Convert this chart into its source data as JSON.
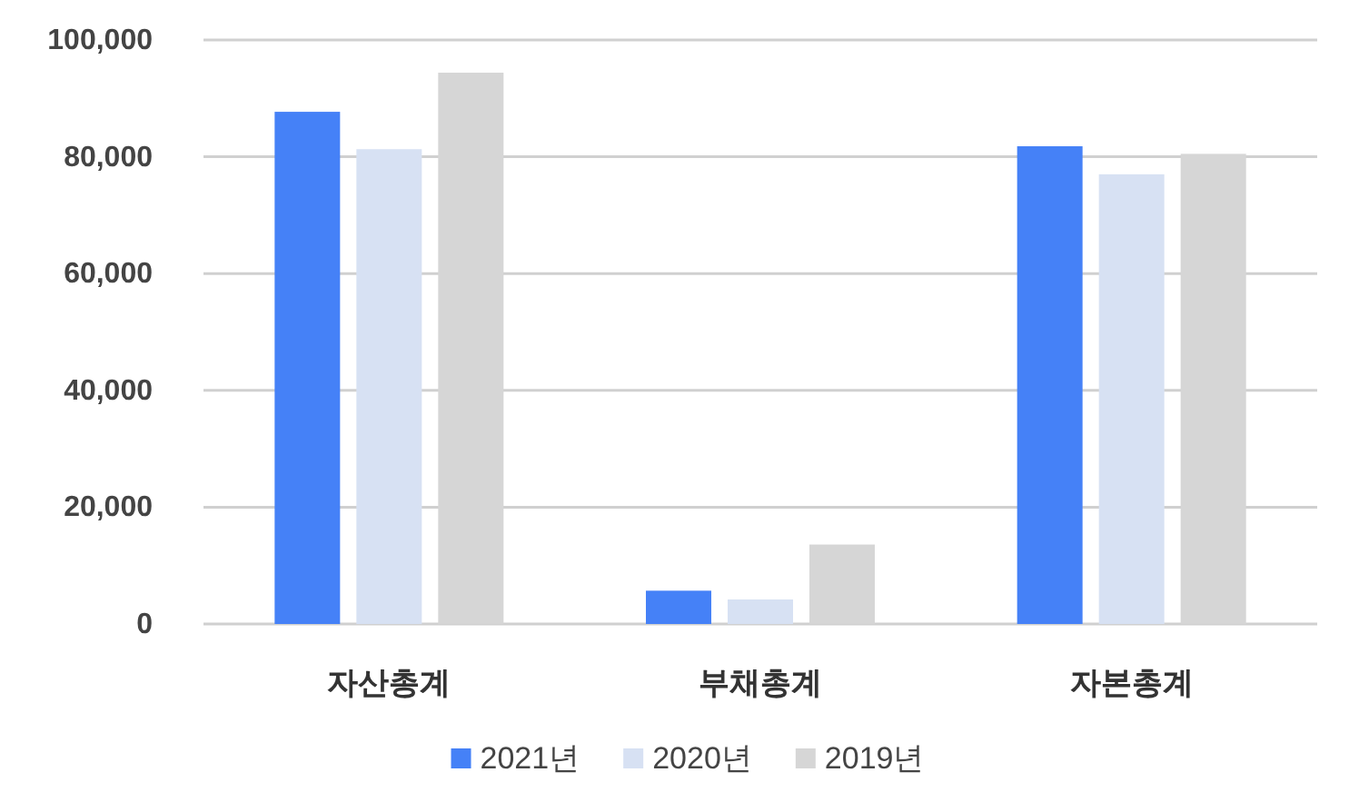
{
  "chart_data": {
    "type": "bar",
    "categories": [
      "자산총계",
      "부채총계",
      "자본총계"
    ],
    "series": [
      {
        "name": "2021년",
        "color": "#4581f7",
        "values": [
          87700,
          5700,
          81800
        ]
      },
      {
        "name": "2020년",
        "color": "#d7e1f3",
        "values": [
          81300,
          4200,
          77000
        ]
      },
      {
        "name": "2019년",
        "color": "#d6d6d6",
        "values": [
          94400,
          13600,
          80500
        ]
      }
    ],
    "ylim": [
      0,
      100000
    ],
    "yticks": [
      {
        "value": 0,
        "label": "0"
      },
      {
        "value": 20000,
        "label": "20,000"
      },
      {
        "value": 40000,
        "label": "40,000"
      },
      {
        "value": 60000,
        "label": "60,000"
      },
      {
        "value": 80000,
        "label": "80,000"
      },
      {
        "value": 100000,
        "label": "100,000"
      }
    ],
    "grid": "y",
    "legend": "bottom"
  }
}
